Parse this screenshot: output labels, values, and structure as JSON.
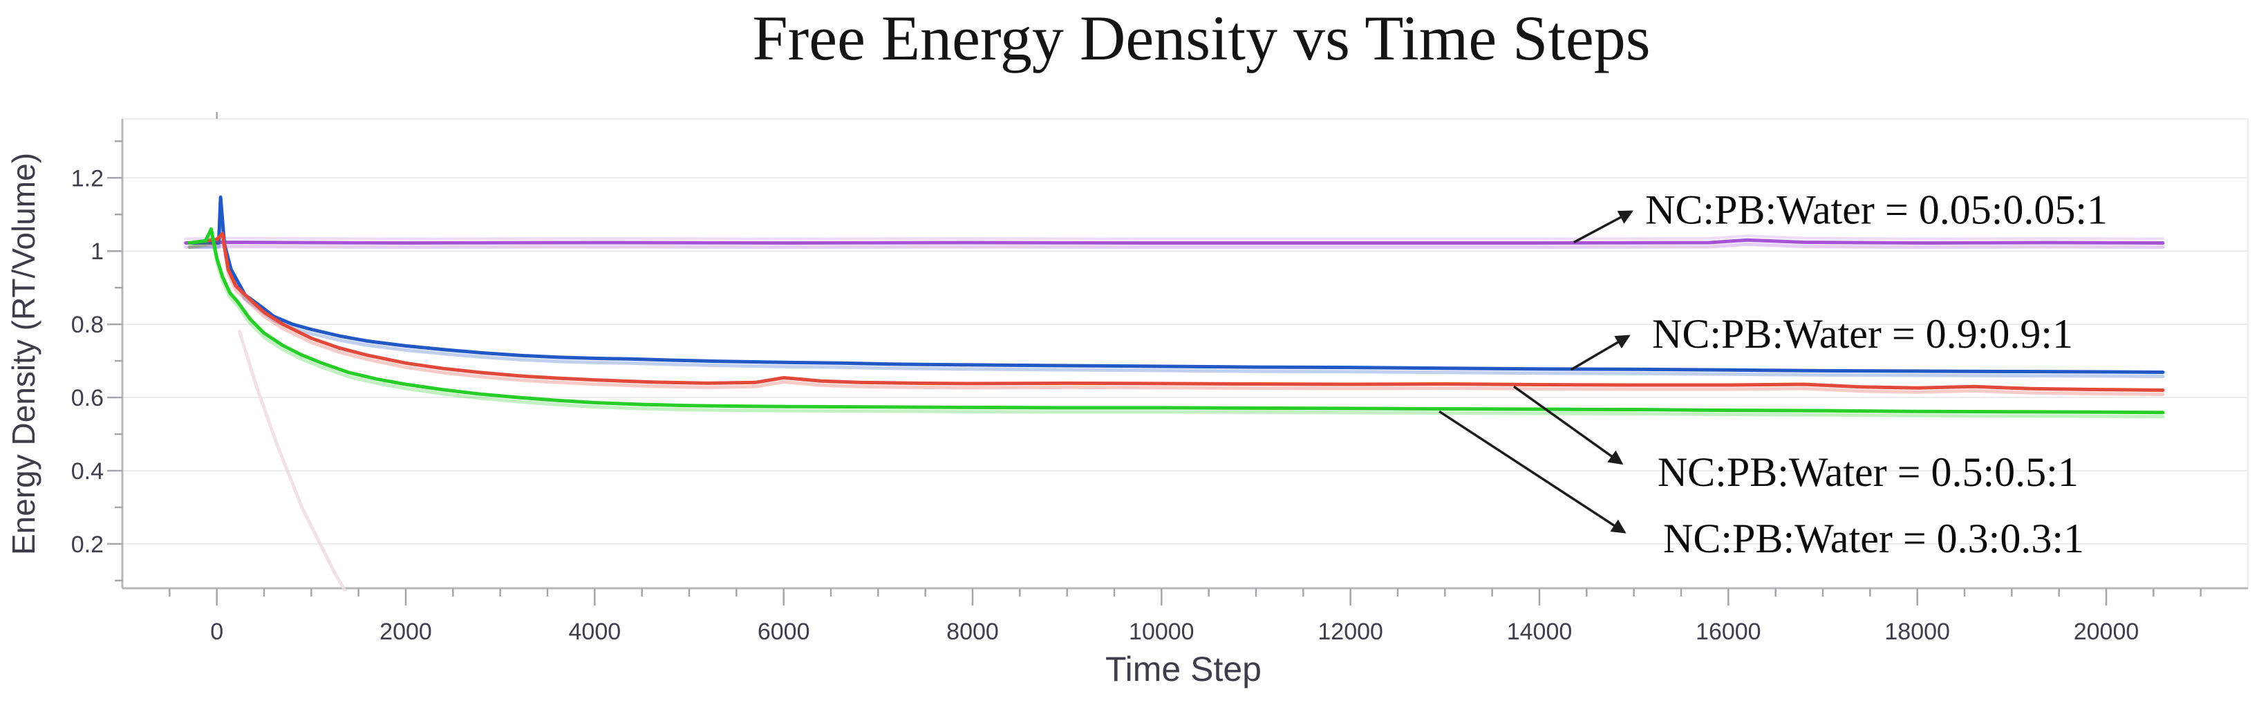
{
  "page": {
    "background": "#ffffff"
  },
  "chart_data": {
    "type": "line",
    "title": "Free Energy Density vs Time Steps",
    "xlabel": "Time Step",
    "ylabel": "Energy Density (RT/Volume)",
    "xlim": [
      -1000,
      21500
    ],
    "ylim": [
      0.079,
      1.361
    ],
    "grid": "horizontal-major-only",
    "legend_position": "inline-annotations-right",
    "x_major_ticks": [
      0,
      2000,
      4000,
      6000,
      8000,
      10000,
      12000,
      14000,
      16000,
      18000,
      20000
    ],
    "x_major_tick_labels": [
      "0",
      "2000",
      "4000",
      "6000",
      "8000",
      "10000",
      "12000",
      "14000",
      "16000",
      "18000",
      "20000"
    ],
    "x_minor_step": 500,
    "x_minor_range": [
      -500,
      21000
    ],
    "y_major_ticks": [
      0.2,
      0.4,
      0.6,
      0.8,
      1.0,
      1.2
    ],
    "y_major_tick_labels": [
      "0.2",
      "0.4",
      "0.6",
      "0.8",
      "1",
      "1.2"
    ],
    "y_minor_step": 0.1,
    "y_minor_range": [
      0.1,
      1.3
    ],
    "colors": {
      "axis_line": "#b7b7bc",
      "tick": "#a6a6ab",
      "grid": "#ebebeb",
      "plot_border": "#ededed",
      "tick_text": "#3e3e4c",
      "axis_text": "#3d3d4b",
      "title_text": "#141414",
      "annotation_text": "#0b0b0b",
      "arrow": "#1c1c1c",
      "ghost": "#f0d9e2"
    },
    "series": [
      {
        "name": "NC:PB:Water = 0.05:0.05:1",
        "color": "#a653d8",
        "points": [
          [
            -330,
            1.022
          ],
          [
            0,
            1.024
          ],
          [
            2000,
            1.022
          ],
          [
            4000,
            1.023
          ],
          [
            6000,
            1.022
          ],
          [
            8000,
            1.023
          ],
          [
            10000,
            1.022
          ],
          [
            12000,
            1.022
          ],
          [
            14000,
            1.022
          ],
          [
            15800,
            1.023
          ],
          [
            16200,
            1.03
          ],
          [
            16800,
            1.024
          ],
          [
            18000,
            1.022
          ],
          [
            19400,
            1.023
          ],
          [
            20600,
            1.022
          ]
        ]
      },
      {
        "name": "NC:PB:Water = 0.9:0.9:1",
        "color": "#2257c6",
        "points": [
          [
            -290,
            1.022
          ],
          [
            20,
            1.022
          ],
          [
            40,
            1.147
          ],
          [
            80,
            1.02
          ],
          [
            150,
            0.95
          ],
          [
            300,
            0.88
          ],
          [
            450,
            0.852
          ],
          [
            600,
            0.822
          ],
          [
            800,
            0.8
          ],
          [
            1000,
            0.786
          ],
          [
            1300,
            0.768
          ],
          [
            1600,
            0.754
          ],
          [
            2000,
            0.741
          ],
          [
            2400,
            0.731
          ],
          [
            2800,
            0.722
          ],
          [
            3200,
            0.715
          ],
          [
            3600,
            0.71
          ],
          [
            4000,
            0.707
          ],
          [
            4400,
            0.705
          ],
          [
            4800,
            0.702
          ],
          [
            5300,
            0.699
          ],
          [
            6000,
            0.696
          ],
          [
            6600,
            0.694
          ],
          [
            7200,
            0.691
          ],
          [
            8000,
            0.689
          ],
          [
            9000,
            0.687
          ],
          [
            10000,
            0.685
          ],
          [
            11000,
            0.683
          ],
          [
            12000,
            0.682
          ],
          [
            13000,
            0.68
          ],
          [
            14000,
            0.678
          ],
          [
            15000,
            0.677
          ],
          [
            16000,
            0.675
          ],
          [
            17000,
            0.673
          ],
          [
            18000,
            0.672
          ],
          [
            19000,
            0.671
          ],
          [
            20000,
            0.67
          ],
          [
            20600,
            0.669
          ]
        ]
      },
      {
        "name": "NC:PB:Water = 0.5:0.5:1",
        "color": "#e2493b",
        "points": [
          [
            -290,
            1.022
          ],
          [
            0,
            1.032
          ],
          [
            60,
            1.048
          ],
          [
            120,
            0.95
          ],
          [
            200,
            0.905
          ],
          [
            350,
            0.868
          ],
          [
            500,
            0.833
          ],
          [
            700,
            0.8
          ],
          [
            1000,
            0.762
          ],
          [
            1300,
            0.735
          ],
          [
            1600,
            0.715
          ],
          [
            2000,
            0.694
          ],
          [
            2400,
            0.679
          ],
          [
            2800,
            0.668
          ],
          [
            3200,
            0.659
          ],
          [
            3600,
            0.653
          ],
          [
            4000,
            0.648
          ],
          [
            4600,
            0.642
          ],
          [
            5200,
            0.639
          ],
          [
            5700,
            0.641
          ],
          [
            6000,
            0.654
          ],
          [
            6400,
            0.645
          ],
          [
            6800,
            0.641
          ],
          [
            7400,
            0.639
          ],
          [
            8000,
            0.638
          ],
          [
            9000,
            0.639
          ],
          [
            10000,
            0.638
          ],
          [
            11000,
            0.637
          ],
          [
            12000,
            0.636
          ],
          [
            13000,
            0.637
          ],
          [
            14000,
            0.635
          ],
          [
            15000,
            0.634
          ],
          [
            16000,
            0.634
          ],
          [
            16800,
            0.636
          ],
          [
            17400,
            0.629
          ],
          [
            18000,
            0.626
          ],
          [
            18600,
            0.63
          ],
          [
            19200,
            0.624
          ],
          [
            19800,
            0.622
          ],
          [
            20600,
            0.62
          ]
        ]
      },
      {
        "name": "NC:PB:Water = 0.3:0.3:1",
        "color": "#27ce27",
        "points": [
          [
            -290,
            1.022
          ],
          [
            -120,
            1.028
          ],
          [
            -60,
            1.06
          ],
          [
            0,
            0.98
          ],
          [
            60,
            0.93
          ],
          [
            140,
            0.885
          ],
          [
            220,
            0.862
          ],
          [
            350,
            0.815
          ],
          [
            500,
            0.776
          ],
          [
            700,
            0.742
          ],
          [
            900,
            0.716
          ],
          [
            1100,
            0.695
          ],
          [
            1400,
            0.668
          ],
          [
            1700,
            0.65
          ],
          [
            2000,
            0.636
          ],
          [
            2400,
            0.621
          ],
          [
            2800,
            0.609
          ],
          [
            3200,
            0.6
          ],
          [
            3600,
            0.592
          ],
          [
            4000,
            0.586
          ],
          [
            4500,
            0.581
          ],
          [
            5000,
            0.578
          ],
          [
            5600,
            0.576
          ],
          [
            6200,
            0.575
          ],
          [
            7000,
            0.574
          ],
          [
            8000,
            0.573
          ],
          [
            9000,
            0.572
          ],
          [
            10000,
            0.572
          ],
          [
            11000,
            0.571
          ],
          [
            12000,
            0.57
          ],
          [
            13000,
            0.569
          ],
          [
            14000,
            0.568
          ],
          [
            15000,
            0.567
          ],
          [
            16000,
            0.565
          ],
          [
            17000,
            0.564
          ],
          [
            18000,
            0.562
          ],
          [
            19000,
            0.561
          ],
          [
            20000,
            0.56
          ],
          [
            20600,
            0.559
          ]
        ]
      }
    ],
    "ghost_artifact": {
      "points": [
        [
          240,
          0.78
        ],
        [
          420,
          0.63
        ],
        [
          640,
          0.47
        ],
        [
          900,
          0.3
        ],
        [
          1250,
          0.12
        ],
        [
          1500,
          0.01
        ]
      ]
    },
    "annotations": [
      {
        "text": "NC:PB:Water = 0.05:0.05:1",
        "text_at": [
          15120,
          1.113
        ],
        "arrow_from": [
          14365,
          1.024
        ],
        "arrow_to": [
          14975,
          1.108
        ]
      },
      {
        "text": "NC:PB:Water = 0.9:0.9:1",
        "text_at": [
          15193,
          0.774
        ],
        "arrow_from": [
          14335,
          0.676
        ],
        "arrow_to": [
          14944,
          0.768
        ]
      },
      {
        "text": "NC:PB:Water = 0.5:0.5:1",
        "text_at": [
          15250,
          0.396
        ],
        "arrow_from": [
          13730,
          0.63
        ],
        "arrow_to": [
          14870,
          0.42
        ]
      },
      {
        "text": "NC:PB:Water = 0.3:0.3:1",
        "text_at": [
          15310,
          0.215
        ],
        "arrow_from": [
          12940,
          0.562
        ],
        "arrow_to": [
          14900,
          0.232
        ]
      }
    ]
  }
}
